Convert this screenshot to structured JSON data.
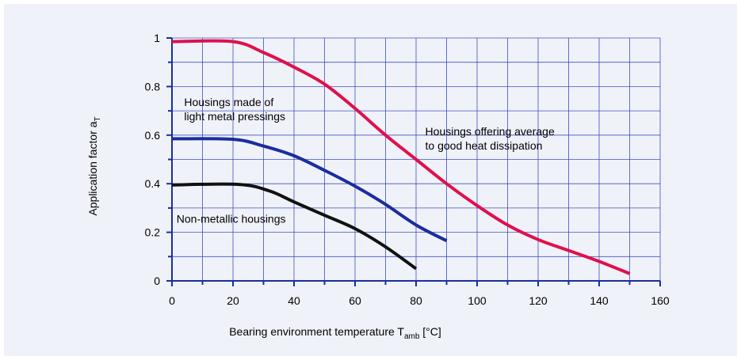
{
  "chart_data": {
    "type": "line",
    "xlabel": {
      "main": "Bearing environment temperature T",
      "sub": "amb",
      "unit": " [°C]"
    },
    "ylabel": {
      "main": "Application factor a",
      "sub": "T"
    },
    "xlim": [
      0,
      160
    ],
    "ylim": [
      0,
      1
    ],
    "xticks": [
      0,
      20,
      40,
      60,
      80,
      100,
      120,
      140,
      160
    ],
    "yticks": [
      0,
      0.2,
      0.4,
      0.6,
      0.8,
      1
    ],
    "xtick_labels": [
      "0",
      "20",
      "40",
      "60",
      "80",
      "100",
      "120",
      "140",
      "160"
    ],
    "ytick_labels": [
      "0",
      "0.2",
      "0.4",
      "0.6",
      "0.8",
      "1"
    ],
    "grid": true,
    "series": [
      {
        "name": "Housings offering average to good heat dissipation",
        "color": "#e0104a",
        "points": [
          [
            0,
            0.985
          ],
          [
            20,
            0.985
          ],
          [
            30,
            0.94
          ],
          [
            40,
            0.88
          ],
          [
            50,
            0.81
          ],
          [
            60,
            0.71
          ],
          [
            70,
            0.6
          ],
          [
            80,
            0.5
          ],
          [
            90,
            0.4
          ],
          [
            100,
            0.31
          ],
          [
            110,
            0.23
          ],
          [
            120,
            0.17
          ],
          [
            130,
            0.125
          ],
          [
            140,
            0.08
          ],
          [
            150,
            0.03
          ]
        ]
      },
      {
        "name": "Housings made of light metal pressings",
        "color": "#1a2d9e",
        "points": [
          [
            0,
            0.585
          ],
          [
            20,
            0.583
          ],
          [
            30,
            0.555
          ],
          [
            40,
            0.515
          ],
          [
            50,
            0.455
          ],
          [
            60,
            0.39
          ],
          [
            70,
            0.315
          ],
          [
            80,
            0.23
          ],
          [
            90,
            0.165
          ]
        ]
      },
      {
        "name": "Non-metallic housings",
        "color": "#111111",
        "points": [
          [
            0,
            0.395
          ],
          [
            22,
            0.397
          ],
          [
            32,
            0.37
          ],
          [
            40,
            0.325
          ],
          [
            50,
            0.27
          ],
          [
            60,
            0.215
          ],
          [
            70,
            0.14
          ],
          [
            80,
            0.05
          ]
        ]
      }
    ],
    "annotations": [
      {
        "id": "light-metal",
        "lines": [
          "Housings made of",
          "light metal pressings"
        ],
        "x": 4,
        "y": 0.72
      },
      {
        "id": "heat-dissipation",
        "lines": [
          "Housings offering average",
          "to good heat dissipation"
        ],
        "x": 83,
        "y": 0.6
      },
      {
        "id": "non-metallic",
        "lines": [
          "Non-metallic housings"
        ],
        "x": 1.5,
        "y": 0.24
      }
    ]
  }
}
